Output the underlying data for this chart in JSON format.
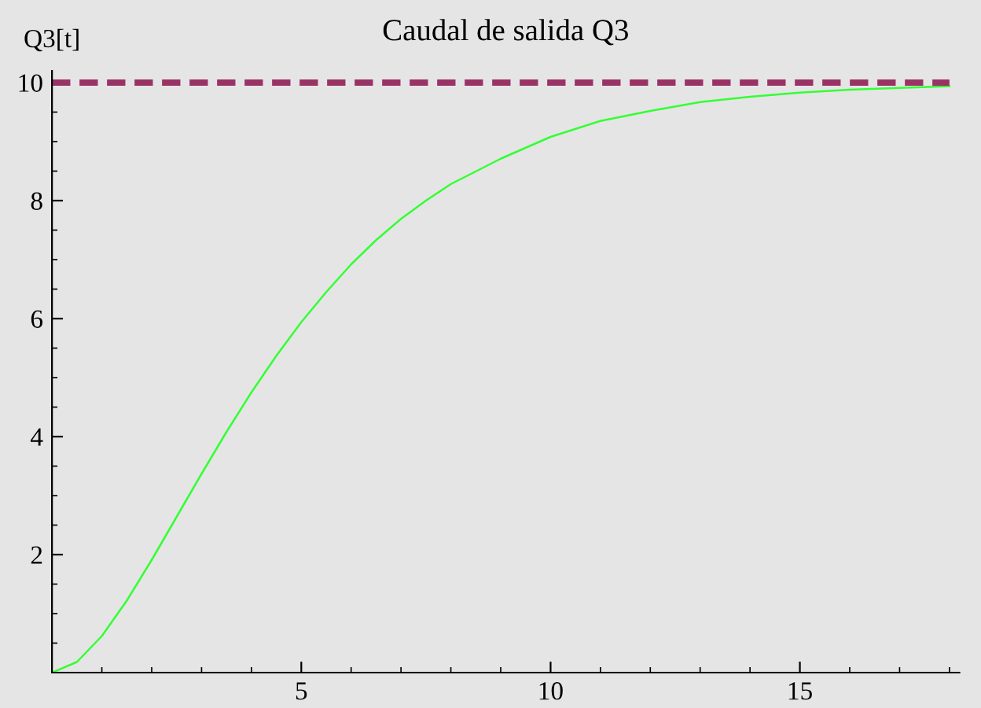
{
  "chart_data": {
    "type": "line",
    "title": "Caudal de salida Q3",
    "ylabel": "Q3[t]",
    "x": [
      0,
      0.5,
      1,
      1.5,
      2,
      2.5,
      3,
      3.5,
      4,
      4.5,
      5,
      5.5,
      6,
      6.5,
      7,
      7.5,
      8,
      9,
      10,
      11,
      12,
      13,
      14,
      15,
      16,
      17,
      18
    ],
    "series": [
      {
        "color": "#33ff33",
        "values": [
          0,
          0.18,
          0.62,
          1.22,
          1.91,
          2.64,
          3.37,
          4.08,
          4.75,
          5.37,
          5.94,
          6.45,
          6.92,
          7.33,
          7.69,
          8.0,
          8.28,
          8.71,
          9.08,
          9.35,
          9.52,
          9.67,
          9.76,
          9.83,
          9.88,
          9.91,
          9.94
        ]
      }
    ],
    "ref_lines": [
      {
        "axis": "y",
        "value": 10,
        "color": "#993366",
        "line_style": "dashed"
      }
    ],
    "xlim": [
      0,
      18.2
    ],
    "ylim": [
      0,
      10.2
    ],
    "xticks": [
      5,
      10,
      15
    ],
    "yticks": [
      2,
      4,
      6,
      8,
      10
    ],
    "grid": false,
    "legend": false,
    "marker": "none",
    "line_style": "solid"
  }
}
